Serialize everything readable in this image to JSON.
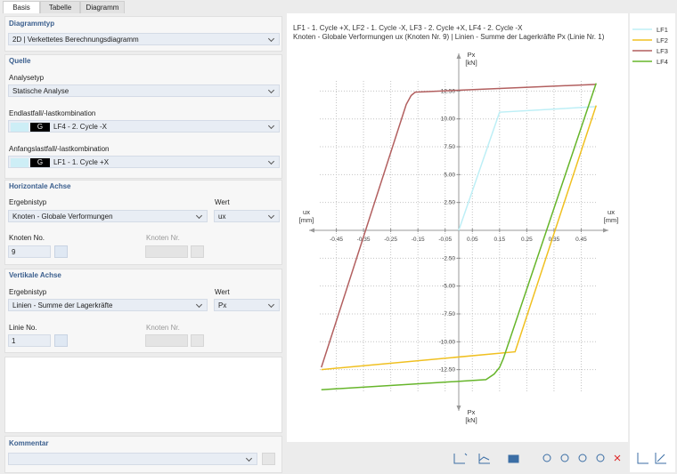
{
  "tabs": [
    "Basis",
    "Tabelle",
    "Diagramm"
  ],
  "panel": {
    "diagrammtyp": {
      "title": "Diagrammtyp",
      "value": "2D | Verkettetes Berechnungsdiagramm"
    },
    "quelle": {
      "title": "Quelle",
      "analysetyp_label": "Analysetyp",
      "analysetyp": "Statische Analyse",
      "end_label": "Endlastfall/-lastkombination",
      "end_tag": "G",
      "end_value": "LF4 - 2. Cycle -X",
      "start_label": "Anfangslastfall/-lastkombination",
      "start_tag": "G",
      "start_value": "LF1 - 1. Cycle +X"
    },
    "horizontal": {
      "title": "Horizontale Achse",
      "ergebnistyp_label": "Ergebnistyp",
      "ergebnistyp": "Knoten - Globale Verformungen",
      "wert_label": "Wert",
      "wert": "ux",
      "no_label": "Knoten No.",
      "no": "9",
      "nr_label": "Knoten Nr."
    },
    "vertical": {
      "title": "Vertikale Achse",
      "ergebnistyp_label": "Ergebnistyp",
      "ergebnistyp": "Linien - Summe der Lagerkräfte",
      "wert_label": "Wert",
      "wert": "Px",
      "no_label": "Linie No.",
      "no": "1",
      "nr_label": "Knoten Nr."
    },
    "kommentar": {
      "title": "Kommentar"
    }
  },
  "chart_data": {
    "type": "line",
    "title": "LF1 - 1. Cycle +X, LF2 - 1. Cycle -X, LF3 - 2. Cycle +X, LF4 - 2. Cycle -X",
    "subtitle": "Knoten - Globale Verformungen ux (Knoten Nr. 9) | Linien - Summe der Lagerkräfte Px (Linie Nr. 1)",
    "x_label": "ux",
    "x_unit": "[mm]",
    "y_label": "Px",
    "y_unit": "[kN]",
    "xlim": [
      -0.55,
      0.55
    ],
    "xticks": [
      -0.45,
      -0.35,
      -0.25,
      -0.15,
      -0.05,
      0.05,
      0.15,
      0.25,
      0.35,
      0.45
    ],
    "ylim": [
      -16.2,
      16.2
    ],
    "yticks": [
      {
        "value": 12.5,
        "label": "12.50"
      },
      {
        "value": 10,
        "label": "10.00"
      },
      {
        "value": 7.5,
        "label": "7.50"
      },
      {
        "value": 5,
        "label": "5.00"
      },
      {
        "value": 2.5,
        "label": "2.50"
      },
      {
        "value": -2.5,
        "label": "-2.50"
      },
      {
        "value": -5,
        "label": "-5.00"
      },
      {
        "value": -7.5,
        "label": "-7.50"
      },
      {
        "value": -10,
        "label": "-10.00"
      },
      {
        "value": -12.5,
        "label": "-12.50"
      }
    ],
    "grid": true,
    "series": [
      {
        "name": "LF1",
        "color": "#bdeff6",
        "x": [
          0,
          0.15,
          0.505
        ],
        "values": [
          0,
          10.6,
          11.1
        ]
      },
      {
        "name": "LF2",
        "color": "#f0c020",
        "x": [
          -0.505,
          0.207,
          0.505
        ],
        "values": [
          -12.5,
          -10.9,
          11.2
        ]
      },
      {
        "name": "LF3",
        "color": "#b25f5f",
        "x": [
          -0.505,
          -0.193,
          -0.175,
          -0.16,
          0.505
        ],
        "values": [
          -12.3,
          11.3,
          12.1,
          12.4,
          13.1
        ]
      },
      {
        "name": "LF4",
        "color": "#66b52a",
        "x": [
          -0.505,
          0.1,
          0.13,
          0.15,
          0.164,
          0.505
        ],
        "values": [
          -14.3,
          -13.4,
          -12.9,
          -12.3,
          -11.5,
          13.2
        ]
      }
    ]
  }
}
